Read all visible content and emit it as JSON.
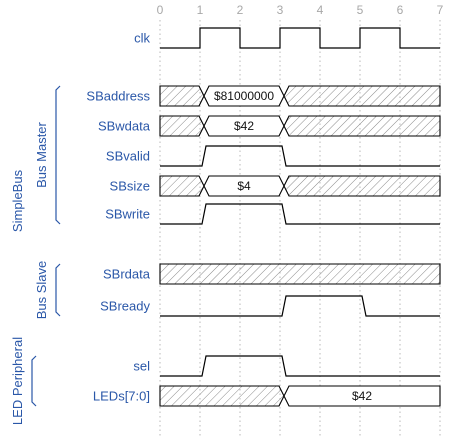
{
  "title": "",
  "colors": {
    "label": "#2a57a8",
    "wave": "#000000",
    "grid": "#b8b8b8",
    "tick": "#a8a8a8",
    "hatch": "#8a8a8a"
  },
  "cycles": [
    "0",
    "1",
    "2",
    "3",
    "4",
    "5",
    "6",
    "7"
  ],
  "groups": [
    {
      "key": "simplebus",
      "label": "SimpleBus"
    },
    {
      "key": "busmaster",
      "label": "Bus Master"
    },
    {
      "key": "busslave",
      "label": "Bus Slave"
    },
    {
      "key": "ledperipheral",
      "label": "LED Peripheral"
    }
  ],
  "signals": [
    {
      "key": "clk",
      "label": "clk",
      "type": "clock"
    },
    {
      "key": "sbaddress",
      "label": "SBaddress",
      "type": "bus",
      "segments": [
        {
          "from": 0,
          "to": 1.1,
          "kind": "x"
        },
        {
          "from": 1.1,
          "to": 3.1,
          "kind": "v",
          "value": "$81000000"
        },
        {
          "from": 3.1,
          "to": 7,
          "kind": "x"
        }
      ]
    },
    {
      "key": "sbwdata",
      "label": "SBwdata",
      "type": "bus",
      "segments": [
        {
          "from": 0,
          "to": 1.1,
          "kind": "x"
        },
        {
          "from": 1.1,
          "to": 3.1,
          "kind": "v",
          "value": "$42"
        },
        {
          "from": 3.1,
          "to": 7,
          "kind": "x"
        }
      ]
    },
    {
      "key": "sbvalid",
      "label": "SBvalid",
      "type": "bit",
      "high": [
        [
          1.1,
          3.1
        ]
      ]
    },
    {
      "key": "sbsize",
      "label": "SBsize",
      "type": "bus",
      "segments": [
        {
          "from": 0,
          "to": 1.1,
          "kind": "x"
        },
        {
          "from": 1.1,
          "to": 3.1,
          "kind": "v",
          "value": "$4"
        },
        {
          "from": 3.1,
          "to": 7,
          "kind": "x"
        }
      ]
    },
    {
      "key": "sbwrite",
      "label": "SBwrite",
      "type": "bit",
      "high": [
        [
          1.1,
          3.1
        ]
      ]
    },
    {
      "key": "sbrdata",
      "label": "SBrdata",
      "type": "bus",
      "segments": [
        {
          "from": 0,
          "to": 7,
          "kind": "x"
        }
      ]
    },
    {
      "key": "sbready",
      "label": "SBready",
      "type": "bit",
      "high": [
        [
          3.1,
          5.1
        ]
      ]
    },
    {
      "key": "sel",
      "label": "sel",
      "type": "bit",
      "high": [
        [
          1.1,
          3.1
        ]
      ]
    },
    {
      "key": "leds",
      "label": "LEDs[7:0]",
      "type": "bus",
      "segments": [
        {
          "from": 0,
          "to": 3.1,
          "kind": "x"
        },
        {
          "from": 3.1,
          "to": 7,
          "kind": "v",
          "value": "$42"
        }
      ]
    }
  ]
}
